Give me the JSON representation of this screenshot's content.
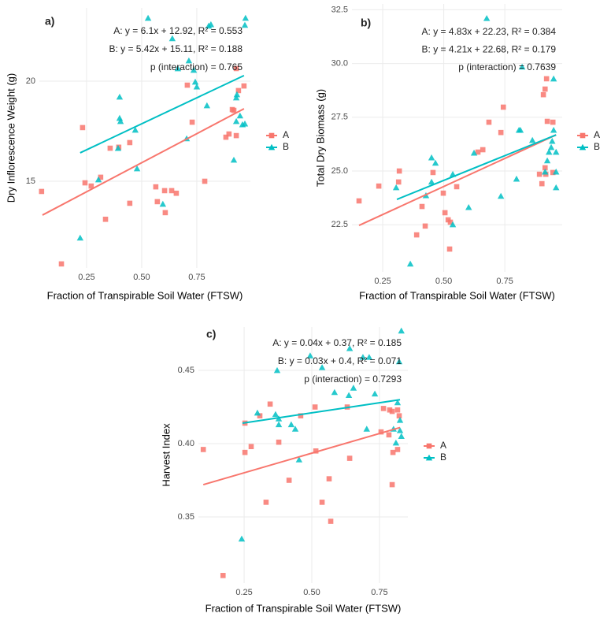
{
  "chart_data": [
    {
      "type": "scatter",
      "tag": "a)",
      "x_label": "Fraction of Transpirable Soil Water (FTSW)",
      "y_label": "Dry Inflorescence Weight (g)",
      "annotations": [
        "A: y = 6.1x + 12.92, R² = 0.553",
        "B: y = 5.42x + 15.11, R² = 0.188",
        "p (interaction) = 0.765"
      ],
      "xlim": [
        0.036,
        0.993
      ],
      "ylim": [
        10.67,
        23.66
      ],
      "xticks": [
        0.25,
        {
          "value": 0.5,
          "label": "0.50"
        },
        0.75
      ],
      "yticks": [
        15,
        20
      ],
      "grid": true,
      "legend": "right",
      "series": [
        {
          "name": "A",
          "color": "#F8766D",
          "marker": "square",
          "x": [
            0.046,
            0.136,
            0.232,
            0.243,
            0.271,
            0.314,
            0.336,
            0.357,
            0.396,
            0.446,
            0.446,
            0.564,
            0.571,
            0.607,
            0.604,
            0.636,
            0.657,
            0.707,
            0.729,
            0.786,
            0.882,
            0.896,
            0.911,
            0.918,
            0.929,
            0.929,
            0.939,
            0.964
          ],
          "values": [
            14.49,
            10.87,
            17.68,
            14.92,
            14.76,
            15.2,
            13.1,
            16.65,
            16.7,
            16.93,
            13.9,
            14.72,
            13.98,
            13.43,
            14.53,
            14.53,
            14.4,
            19.8,
            17.95,
            15.0,
            17.2,
            17.36,
            18.58,
            18.54,
            17.28,
            20.63,
            19.53,
            19.76
          ],
          "fit": {
            "x": [
              0.05,
              0.964
            ],
            "values": [
              13.31,
              18.62
            ]
          }
        },
        {
          "name": "B",
          "color": "#00BFC4",
          "marker": "triangle",
          "x": [
            0.221,
            0.304,
            0.393,
            0.4,
            0.4,
            0.404,
            0.471,
            0.479,
            0.529,
            0.596,
            0.639,
            0.664,
            0.714,
            0.736,
            0.743,
            0.75,
            0.704,
            0.796,
            0.804,
            0.814,
            0.918,
            0.929,
            0.932,
            0.946,
            0.957,
            0.968,
            0.971,
            0.968,
            0.929
          ],
          "values": [
            12.17,
            15.08,
            16.65,
            19.21,
            18.15,
            17.99,
            17.56,
            15.63,
            23.15,
            13.86,
            22.13,
            20.63,
            21.02,
            20.55,
            19.96,
            19.72,
            17.13,
            18.78,
            22.76,
            22.83,
            16.06,
            17.99,
            19.33,
            18.27,
            17.83,
            17.87,
            23.15,
            22.8,
            19.17
          ],
          "fit": {
            "x": [
              0.221,
              0.964
            ],
            "values": [
              16.42,
              20.28
            ]
          }
        }
      ]
    },
    {
      "type": "scatter",
      "tag": "b)",
      "x_label": "Fraction of Transpirable Soil Water (FTSW)",
      "y_label": "Total Dry Biomass (g)",
      "annotations": [
        "A: y = 4.83x + 22.23, R² = 0.384",
        "B: y = 4.21x + 22.68, R² = 0.179",
        "p (interaction) = 0.7639"
      ],
      "xlim": [
        0.124,
        0.985
      ],
      "ylim": [
        20.31,
        32.77
      ],
      "xticks": [
        0.25,
        {
          "value": 0.5,
          "label": "0.50"
        },
        0.75
      ],
      "yticks": [
        22.5,
        {
          "value": 25,
          "label": "25.0"
        },
        27.5,
        {
          "value": 30,
          "label": "30.0"
        },
        32.5
      ],
      "grid": true,
      "legend": "right",
      "series": [
        {
          "name": "A",
          "color": "#F8766D",
          "marker": "square",
          "x": [
            0.153,
            0.234,
            0.318,
            0.315,
            0.389,
            0.424,
            0.411,
            0.456,
            0.498,
            0.505,
            0.553,
            0.524,
            0.518,
            0.527,
            0.64,
            0.66,
            0.685,
            0.744,
            0.734,
            0.892,
            0.902,
            0.908,
            0.915,
            0.921,
            0.915,
            0.924,
            0.947,
            0.947,
            0.918
          ],
          "values": [
            23.61,
            24.3,
            25.0,
            24.49,
            22.03,
            22.44,
            23.35,
            24.93,
            23.97,
            23.06,
            24.27,
            21.37,
            22.73,
            22.62,
            25.88,
            25.99,
            27.27,
            27.97,
            26.79,
            24.85,
            24.41,
            28.55,
            28.81,
            29.29,
            25.15,
            27.31,
            27.27,
            24.93,
            24.85
          ],
          "fit": {
            "x": [
              0.153,
              0.96
            ],
            "values": [
              22.47,
              26.68
            ]
          }
        },
        {
          "name": "B",
          "color": "#00BFC4",
          "marker": "triangle",
          "x": [
            0.305,
            0.363,
            0.427,
            0.45,
            0.45,
            0.466,
            0.537,
            0.537,
            0.602,
            0.624,
            0.676,
            0.821,
            0.808,
            0.814,
            0.798,
            0.734,
            0.863,
            0.915,
            0.924,
            0.931,
            0.94,
            0.944,
            0.95,
            0.95,
            0.96,
            0.96,
            0.96
          ],
          "values": [
            24.23,
            20.68,
            23.86,
            24.49,
            25.62,
            25.37,
            24.85,
            22.51,
            23.31,
            25.84,
            32.1,
            29.84,
            26.9,
            26.9,
            24.63,
            23.83,
            26.43,
            24.96,
            25.48,
            25.88,
            26.1,
            26.39,
            29.29,
            26.9,
            25.88,
            24.23,
            24.96
          ],
          "fit": {
            "x": [
              0.308,
              0.96
            ],
            "values": [
              23.68,
              26.68
            ]
          }
        }
      ]
    },
    {
      "type": "scatter",
      "tag": "c)",
      "x_label": "Fraction of Transpirable Soil Water (FTSW)",
      "y_label": "Harvest Index",
      "annotations": [
        "A: y = 0.04x + 0.37, R² = 0.185",
        "B: y = 0.03x + 0.4, R² = 0.071",
        "p (interaction) = 0.7293"
      ],
      "xlim": [
        0.081,
        0.855
      ],
      "ylim": [
        0.3048,
        0.4796
      ],
      "xticks": [
        0.25,
        {
          "value": 0.5,
          "label": "0.50"
        },
        0.75
      ],
      "yticks": [
        0.35,
        {
          "value": 0.4,
          "label": "0.40"
        },
        0.45
      ],
      "grid": true,
      "legend": "right",
      "series": [
        {
          "name": "A",
          "color": "#F8766D",
          "marker": "square",
          "x": [
            0.099,
            0.172,
            0.253,
            0.253,
            0.276,
            0.308,
            0.331,
            0.346,
            0.378,
            0.416,
            0.459,
            0.512,
            0.515,
            0.538,
            0.564,
            0.57,
            0.631,
            0.64,
            0.756,
            0.765,
            0.785,
            0.788,
            0.797,
            0.8,
            0.797,
            0.817,
            0.817,
            0.823
          ],
          "values": [
            0.396,
            0.31,
            0.414,
            0.394,
            0.398,
            0.419,
            0.36,
            0.427,
            0.401,
            0.375,
            0.419,
            0.425,
            0.395,
            0.36,
            0.376,
            0.347,
            0.425,
            0.39,
            0.408,
            0.424,
            0.406,
            0.423,
            0.422,
            0.394,
            0.372,
            0.396,
            0.423,
            0.419
          ],
          "fit": {
            "x": [
              0.099,
              0.826
            ],
            "values": [
              0.372,
              0.411
            ]
          }
        },
        {
          "name": "B",
          "color": "#00BFC4",
          "marker": "triangle",
          "x": [
            0.241,
            0.299,
            0.366,
            0.372,
            0.378,
            0.378,
            0.424,
            0.439,
            0.453,
            0.494,
            0.538,
            0.584,
            0.64,
            0.637,
            0.654,
            0.689,
            0.703,
            0.712,
            0.733,
            0.817,
            0.826,
            0.826,
            0.831,
            0.831,
            0.823,
            0.802,
            0.811
          ],
          "values": [
            0.335,
            0.421,
            0.42,
            0.45,
            0.417,
            0.413,
            0.413,
            0.41,
            0.389,
            0.46,
            0.452,
            0.435,
            0.465,
            0.433,
            0.438,
            0.459,
            0.41,
            0.459,
            0.434,
            0.428,
            0.416,
            0.409,
            0.405,
            0.477,
            0.456,
            0.41,
            0.4005
          ],
          "fit": {
            "x": [
              0.244,
              0.826
            ],
            "values": [
              0.414,
              0.43
            ]
          }
        }
      ]
    }
  ]
}
